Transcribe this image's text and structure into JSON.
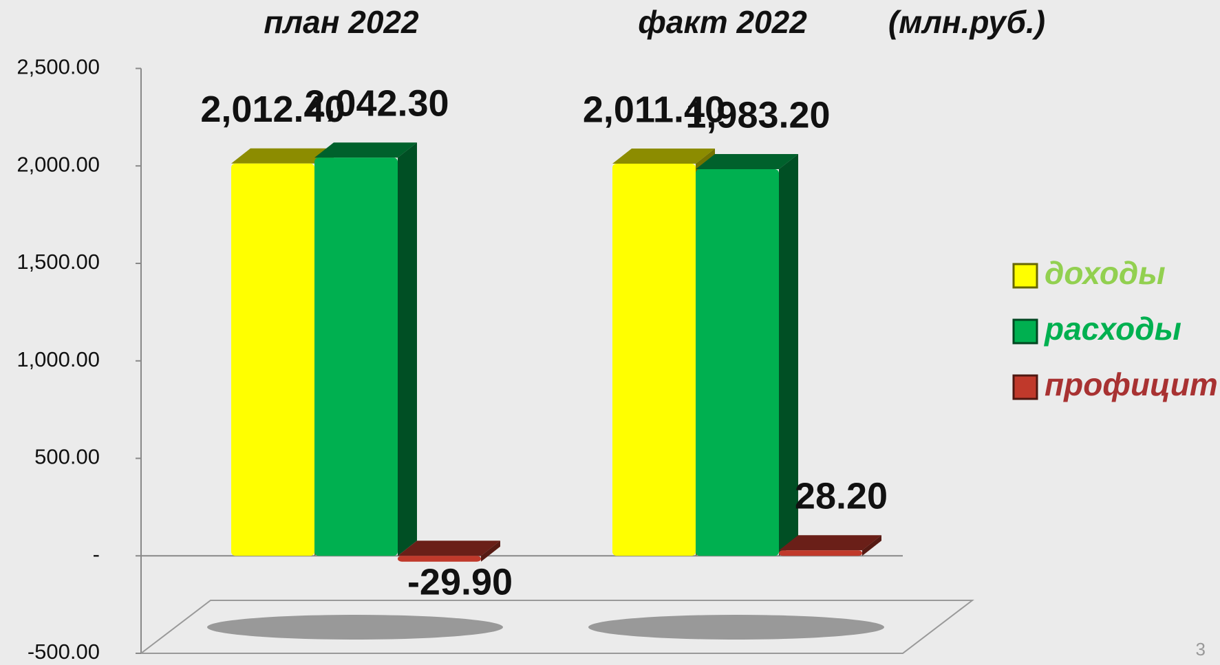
{
  "chart_data": {
    "type": "bar",
    "categories": [
      "план 2022",
      "факт 2022"
    ],
    "unit": "(млн.руб.)",
    "page_number": "3",
    "series": [
      {
        "name": "доходы",
        "color": "#ffff00",
        "text_color": "#92d050",
        "values": [
          2012.4,
          2011.4
        ],
        "value_labels": [
          "2,012.40",
          "2,011.40"
        ]
      },
      {
        "name": "расходы",
        "color": "#00b050",
        "text_color": "#00b050",
        "values": [
          2042.3,
          1983.2
        ],
        "value_labels": [
          "2,042.30",
          "1,983.20"
        ]
      },
      {
        "name": "профицит",
        "color": "#c0392b",
        "text_color": "#a83232",
        "values": [
          -29.9,
          28.2
        ],
        "value_labels": [
          "-29.90",
          "28.20"
        ]
      }
    ],
    "ylim": [
      -500,
      2500
    ],
    "yticks": [
      {
        "value": -500,
        "label": "-500.00"
      },
      {
        "value": 0,
        "label": "-"
      },
      {
        "value": 500,
        "label": "500.00"
      },
      {
        "value": 1000,
        "label": "1,000.00"
      },
      {
        "value": 1500,
        "label": "1,500.00"
      },
      {
        "value": 2000,
        "label": "2,000.00"
      },
      {
        "value": 2500,
        "label": "2,500.00"
      }
    ]
  }
}
